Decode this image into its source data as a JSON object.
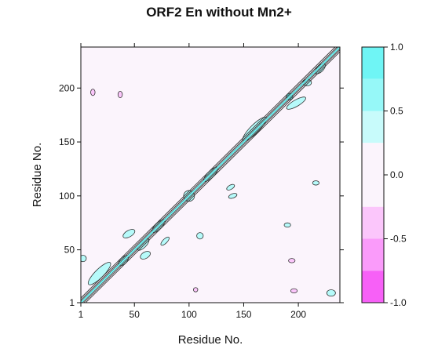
{
  "chart_data": {
    "type": "heatmap",
    "title": "ORF2 En without Mn2+",
    "xlabel": "Residue No.",
    "ylabel": "Residue No.",
    "xlim": [
      1,
      238
    ],
    "ylim": [
      1,
      238
    ],
    "x_ticks": [
      1,
      50,
      100,
      150,
      200
    ],
    "y_ticks": [
      1,
      50,
      100,
      150,
      200
    ],
    "colorbar": {
      "range": [
        -1.0,
        1.0
      ],
      "ticks": [
        "1.0",
        "0.5",
        "0.0",
        "-0.5",
        "-1.0"
      ],
      "tick_values": [
        1.0,
        0.5,
        0.0,
        -0.5,
        -1.0
      ],
      "bands": [
        {
          "from": 0.75,
          "to": 1.0,
          "color": "#6ff5f5"
        },
        {
          "from": 0.5,
          "to": 0.75,
          "color": "#96f8f8"
        },
        {
          "from": 0.25,
          "to": 0.5,
          "color": "#c8fbfb"
        },
        {
          "from": -0.25,
          "to": 0.25,
          "color": "#fbf4fc"
        },
        {
          "from": -0.5,
          "to": -0.25,
          "color": "#fbc6fb"
        },
        {
          "from": -0.75,
          "to": -0.5,
          "color": "#fa9bfa"
        },
        {
          "from": -1.0,
          "to": -0.75,
          "color": "#f760f7"
        }
      ]
    },
    "background_color": "#fbf4fc",
    "diagonal_value": 1.0,
    "positive_regions": [
      {
        "x": 18,
        "y": 28,
        "rx": 14,
        "ry": 4,
        "angle": 45,
        "color": "#b6fafa"
      },
      {
        "x": 40,
        "y": 40,
        "rx": 6,
        "ry": 3,
        "angle": 45,
        "color": "#b6fafa"
      },
      {
        "x": 58,
        "y": 55,
        "rx": 7,
        "ry": 3,
        "angle": 45,
        "color": "#b6fafa"
      },
      {
        "x": 72,
        "y": 72,
        "rx": 8,
        "ry": 3,
        "angle": 45,
        "color": "#b6fafa"
      },
      {
        "x": 120,
        "y": 120,
        "rx": 9,
        "ry": 3,
        "angle": 45,
        "color": "#b6fafa"
      },
      {
        "x": 160,
        "y": 162,
        "rx": 15,
        "ry": 4,
        "angle": 45,
        "color": "#b6fafa"
      },
      {
        "x": 192,
        "y": 192,
        "rx": 3,
        "ry": 3,
        "angle": 0,
        "color": "#6ff5f5"
      },
      {
        "x": 45,
        "y": 65,
        "rx": 6,
        "ry": 3,
        "angle": 30,
        "color": "#b6fafa"
      },
      {
        "x": 60,
        "y": 45,
        "rx": 5,
        "ry": 3,
        "angle": 30,
        "color": "#b6fafa"
      },
      {
        "x": 78,
        "y": 58,
        "rx": 5,
        "ry": 2,
        "angle": 45,
        "color": "#b6fafa"
      },
      {
        "x": 100,
        "y": 100,
        "rx": 5,
        "ry": 5,
        "angle": 0,
        "color": "#b6fafa"
      },
      {
        "x": 138,
        "y": 108,
        "rx": 4,
        "ry": 2,
        "angle": 30,
        "color": "#b6fafa"
      },
      {
        "x": 140,
        "y": 100,
        "rx": 4,
        "ry": 2,
        "angle": 20,
        "color": "#b6fafa"
      },
      {
        "x": 198,
        "y": 186,
        "rx": 10,
        "ry": 3,
        "angle": 30,
        "color": "#b6fafa"
      },
      {
        "x": 208,
        "y": 205,
        "rx": 4,
        "ry": 3,
        "angle": 0,
        "color": "#b6fafa"
      },
      {
        "x": 230,
        "y": 10,
        "rx": 4,
        "ry": 3,
        "angle": 0,
        "color": "#b6fafa"
      },
      {
        "x": 216,
        "y": 112,
        "rx": 3,
        "ry": 2,
        "angle": 0,
        "color": "#b6fafa"
      },
      {
        "x": 3,
        "y": 42,
        "rx": 3,
        "ry": 3,
        "angle": 0,
        "color": "#b6fafa"
      },
      {
        "x": 190,
        "y": 73,
        "rx": 3,
        "ry": 2,
        "angle": 0,
        "color": "#b6fafa"
      },
      {
        "x": 110,
        "y": 63,
        "rx": 3,
        "ry": 3,
        "angle": 0,
        "color": "#b6fafa"
      },
      {
        "x": 220,
        "y": 218,
        "rx": 6,
        "ry": 3,
        "angle": 45,
        "color": "#b6fafa"
      }
    ],
    "negative_regions": [
      {
        "x": 12,
        "y": 196,
        "rx": 2,
        "ry": 3,
        "color": "#fbc6fb"
      },
      {
        "x": 37,
        "y": 194,
        "rx": 2,
        "ry": 3,
        "color": "#fbc6fb"
      },
      {
        "x": 194,
        "y": 40,
        "rx": 3,
        "ry": 2,
        "color": "#fbc6fb"
      },
      {
        "x": 196,
        "y": 12,
        "rx": 3,
        "ry": 2,
        "color": "#fbc6fb"
      },
      {
        "x": 106,
        "y": 13,
        "rx": 2,
        "ry": 2,
        "color": "#fbc6fb"
      }
    ]
  }
}
